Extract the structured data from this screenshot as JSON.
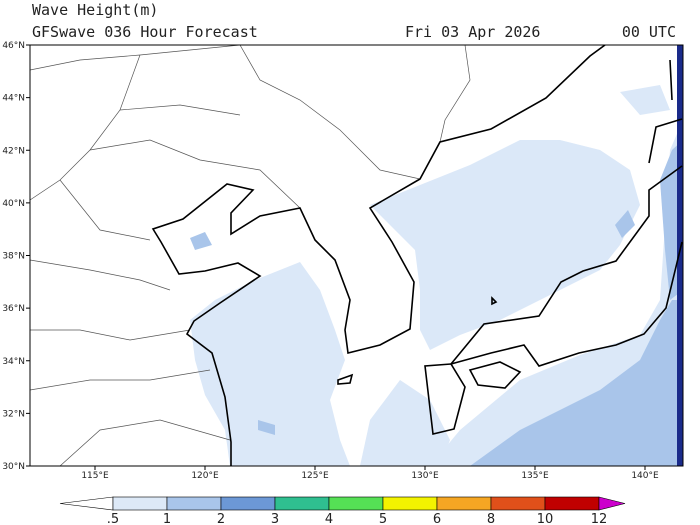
{
  "header": {
    "title": "Wave Height(m)",
    "subtitle": "GFSwave 036 Hour Forecast",
    "date": "Fri 03 Apr 2026",
    "time": "00 UTC"
  },
  "map": {
    "lat_labels": [
      "46°N",
      "44°N",
      "42°N",
      "40°N",
      "38°N",
      "36°N",
      "34°N",
      "32°N",
      "30°N"
    ],
    "lon_labels": [
      "115°E",
      "120°E",
      "125°E",
      "130°E",
      "135°E",
      "140°E"
    ]
  },
  "colorbar": {
    "labels": [
      ".5",
      "1",
      "2",
      "3",
      "4",
      "5",
      "6",
      "8",
      "10",
      "12"
    ]
  }
}
